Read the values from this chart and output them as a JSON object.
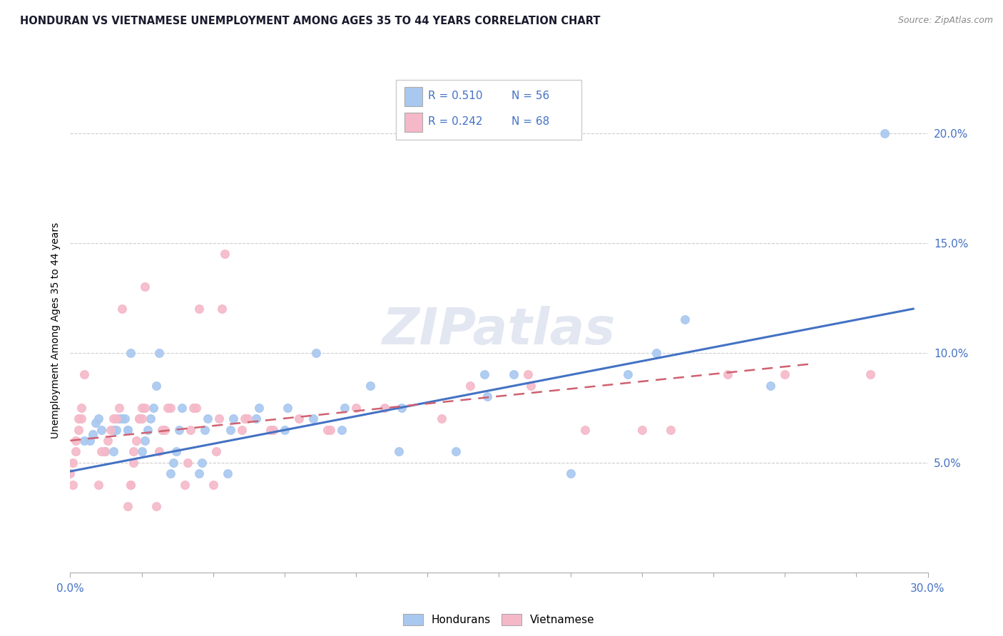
{
  "title": "HONDURAN VS VIETNAMESE UNEMPLOYMENT AMONG AGES 35 TO 44 YEARS CORRELATION CHART",
  "source": "Source: ZipAtlas.com",
  "xlim": [
    0.0,
    0.3
  ],
  "ylim": [
    0.0,
    0.22
  ],
  "honduran_color": "#a8c8f0",
  "vietnamese_color": "#f5b8c8",
  "honduran_line_color": "#4472c4",
  "vietnamese_line_color": "#d06070",
  "watermark": "ZIPatlas",
  "honduran_scatter_x": [
    0.005,
    0.007,
    0.008,
    0.009,
    0.01,
    0.011,
    0.012,
    0.015,
    0.015,
    0.016,
    0.017,
    0.018,
    0.019,
    0.02,
    0.02,
    0.021,
    0.025,
    0.026,
    0.027,
    0.028,
    0.029,
    0.03,
    0.031,
    0.035,
    0.036,
    0.037,
    0.038,
    0.039,
    0.045,
    0.046,
    0.047,
    0.048,
    0.055,
    0.056,
    0.057,
    0.065,
    0.066,
    0.075,
    0.076,
    0.085,
    0.086,
    0.095,
    0.096,
    0.105,
    0.115,
    0.116,
    0.135,
    0.145,
    0.146,
    0.155,
    0.175,
    0.195,
    0.205,
    0.215,
    0.245,
    0.285
  ],
  "honduran_scatter_y": [
    0.06,
    0.06,
    0.063,
    0.068,
    0.07,
    0.065,
    0.055,
    0.055,
    0.065,
    0.065,
    0.07,
    0.07,
    0.07,
    0.065,
    0.065,
    0.1,
    0.055,
    0.06,
    0.065,
    0.07,
    0.075,
    0.085,
    0.1,
    0.045,
    0.05,
    0.055,
    0.065,
    0.075,
    0.045,
    0.05,
    0.065,
    0.07,
    0.045,
    0.065,
    0.07,
    0.07,
    0.075,
    0.065,
    0.075,
    0.07,
    0.1,
    0.065,
    0.075,
    0.085,
    0.055,
    0.075,
    0.055,
    0.09,
    0.08,
    0.09,
    0.045,
    0.09,
    0.1,
    0.115,
    0.085,
    0.2
  ],
  "vietnamese_scatter_x": [
    0.0,
    0.001,
    0.001,
    0.002,
    0.002,
    0.003,
    0.003,
    0.004,
    0.004,
    0.005,
    0.01,
    0.011,
    0.012,
    0.013,
    0.014,
    0.015,
    0.016,
    0.017,
    0.018,
    0.02,
    0.021,
    0.021,
    0.022,
    0.022,
    0.023,
    0.024,
    0.024,
    0.025,
    0.025,
    0.026,
    0.026,
    0.03,
    0.031,
    0.032,
    0.033,
    0.034,
    0.035,
    0.04,
    0.041,
    0.042,
    0.043,
    0.044,
    0.045,
    0.05,
    0.051,
    0.052,
    0.053,
    0.054,
    0.06,
    0.061,
    0.062,
    0.07,
    0.071,
    0.08,
    0.09,
    0.091,
    0.1,
    0.11,
    0.13,
    0.14,
    0.16,
    0.161,
    0.18,
    0.2,
    0.21,
    0.23,
    0.25,
    0.28
  ],
  "vietnamese_scatter_y": [
    0.045,
    0.04,
    0.05,
    0.055,
    0.06,
    0.065,
    0.07,
    0.07,
    0.075,
    0.09,
    0.04,
    0.055,
    0.055,
    0.06,
    0.065,
    0.07,
    0.07,
    0.075,
    0.12,
    0.03,
    0.04,
    0.04,
    0.05,
    0.055,
    0.06,
    0.07,
    0.07,
    0.07,
    0.075,
    0.075,
    0.13,
    0.03,
    0.055,
    0.065,
    0.065,
    0.075,
    0.075,
    0.04,
    0.05,
    0.065,
    0.075,
    0.075,
    0.12,
    0.04,
    0.055,
    0.07,
    0.12,
    0.145,
    0.065,
    0.07,
    0.07,
    0.065,
    0.065,
    0.07,
    0.065,
    0.065,
    0.075,
    0.075,
    0.07,
    0.085,
    0.09,
    0.085,
    0.065,
    0.065,
    0.065,
    0.09,
    0.09,
    0.09
  ],
  "honduran_line_x": [
    0.0,
    0.295
  ],
  "honduran_line_y": [
    0.046,
    0.12
  ],
  "vietnamese_line_x": [
    0.0,
    0.26
  ],
  "vietnamese_line_y": [
    0.06,
    0.095
  ],
  "right_ytick_vals": [
    0.05,
    0.1,
    0.15,
    0.2
  ],
  "right_ytick_labels": [
    "5.0%",
    "10.0%",
    "15.0%",
    "20.0%"
  ],
  "xtick_minor_vals": [
    0.025,
    0.05,
    0.075,
    0.1,
    0.125,
    0.15,
    0.175,
    0.2,
    0.225,
    0.25,
    0.275
  ],
  "grid_yvals": [
    0.05,
    0.1,
    0.15,
    0.2
  ]
}
